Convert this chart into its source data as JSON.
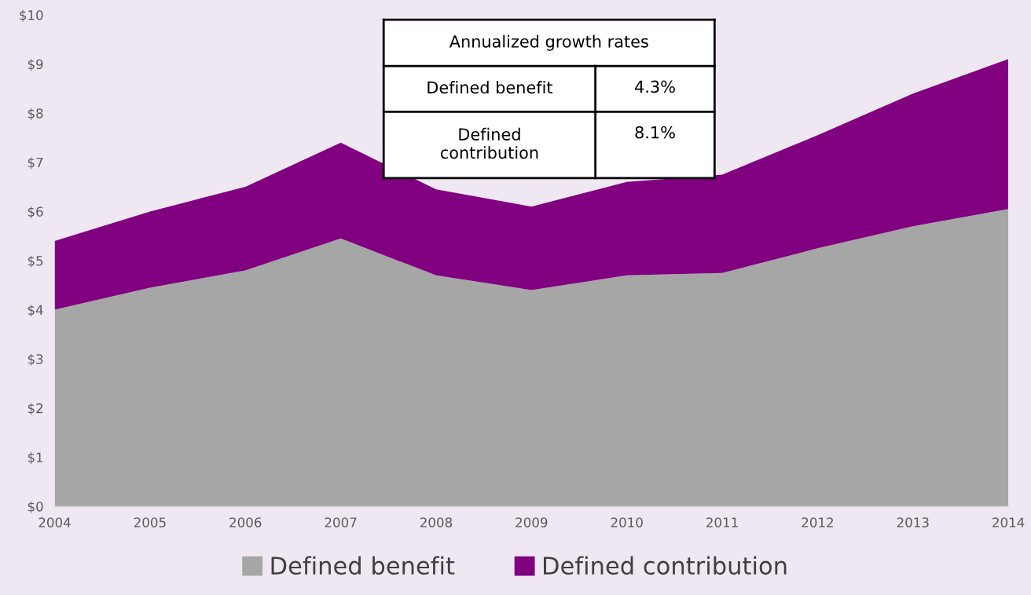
{
  "chart_data": {
    "type": "area",
    "stacked": true,
    "x": [
      2004,
      2005,
      2006,
      2007,
      2008,
      2009,
      2010,
      2011,
      2012,
      2013,
      2014
    ],
    "series": [
      {
        "name": "Defined benefit",
        "color": "#a6a6a6",
        "values": [
          4.0,
          4.45,
          4.8,
          5.45,
          4.7,
          4.4,
          4.7,
          4.75,
          5.25,
          5.7,
          6.05
        ]
      },
      {
        "name": "Defined contribution",
        "color": "#800080",
        "values": [
          1.4,
          1.55,
          1.7,
          1.95,
          1.75,
          1.7,
          1.9,
          2.0,
          2.3,
          2.7,
          3.05
        ]
      }
    ],
    "xlim": [
      2004,
      2014
    ],
    "xticks": [
      2004,
      2005,
      2006,
      2007,
      2008,
      2009,
      2010,
      2011,
      2012,
      2013,
      2014
    ],
    "ylim": [
      0,
      10
    ],
    "yticks": [
      {
        "value": 0,
        "label": "$0"
      },
      {
        "value": 1,
        "label": "$1"
      },
      {
        "value": 2,
        "label": "$2"
      },
      {
        "value": 3,
        "label": "$3"
      },
      {
        "value": 4,
        "label": "$4"
      },
      {
        "value": 5,
        "label": "$5"
      },
      {
        "value": 6,
        "label": "$6"
      },
      {
        "value": 7,
        "label": "$7"
      },
      {
        "value": 8,
        "label": "$8"
      },
      {
        "value": 9,
        "label": "$9"
      },
      {
        "value": 10,
        "label": "$10"
      }
    ],
    "grid": false,
    "legend": "bottom",
    "annotations": [
      "Annualized growth rates",
      "Defined benefit",
      "4.3%",
      "Defined\ncontribution",
      "8.1%"
    ]
  }
}
